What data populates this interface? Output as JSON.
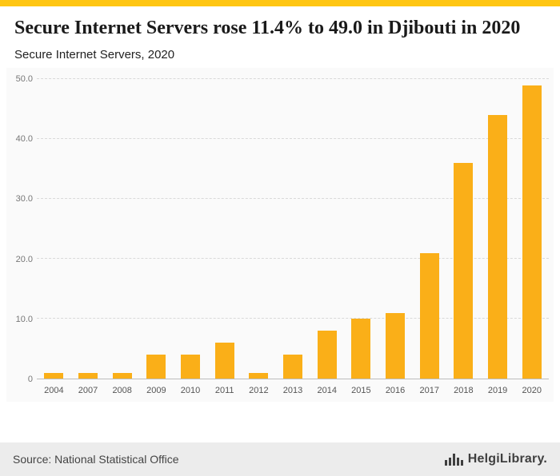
{
  "page": {
    "accent_color": "#FFC613"
  },
  "header": {
    "title": "Secure Internet Servers rose 11.4% to 49.0 in Djibouti in 2020",
    "subtitle": "Secure Internet Servers, 2020"
  },
  "chart_data": {
    "type": "bar",
    "title": "Secure Internet Servers, 2020",
    "categories": [
      "2004",
      "2007",
      "2008",
      "2009",
      "2010",
      "2011",
      "2012",
      "2013",
      "2014",
      "2015",
      "2016",
      "2017",
      "2018",
      "2019",
      "2020"
    ],
    "values": [
      1.0,
      1.0,
      1.0,
      4.0,
      4.0,
      6.0,
      1.0,
      4.0,
      8.0,
      10.0,
      11.0,
      21.0,
      36.0,
      44.0,
      49.0
    ],
    "xlabel": "",
    "ylabel": "",
    "ylim": [
      0,
      50
    ],
    "yticks": [
      0,
      10,
      20,
      30,
      40,
      50
    ],
    "ytick_labels": [
      "0",
      "10.0",
      "20.0",
      "30.0",
      "40.0",
      "50.0"
    ],
    "bar_color": "#FAAF18",
    "grid": "dashed-horizontal",
    "legend": "none"
  },
  "footer": {
    "source": "Source: National Statistical Office",
    "brand": "HelgiLibrary."
  }
}
